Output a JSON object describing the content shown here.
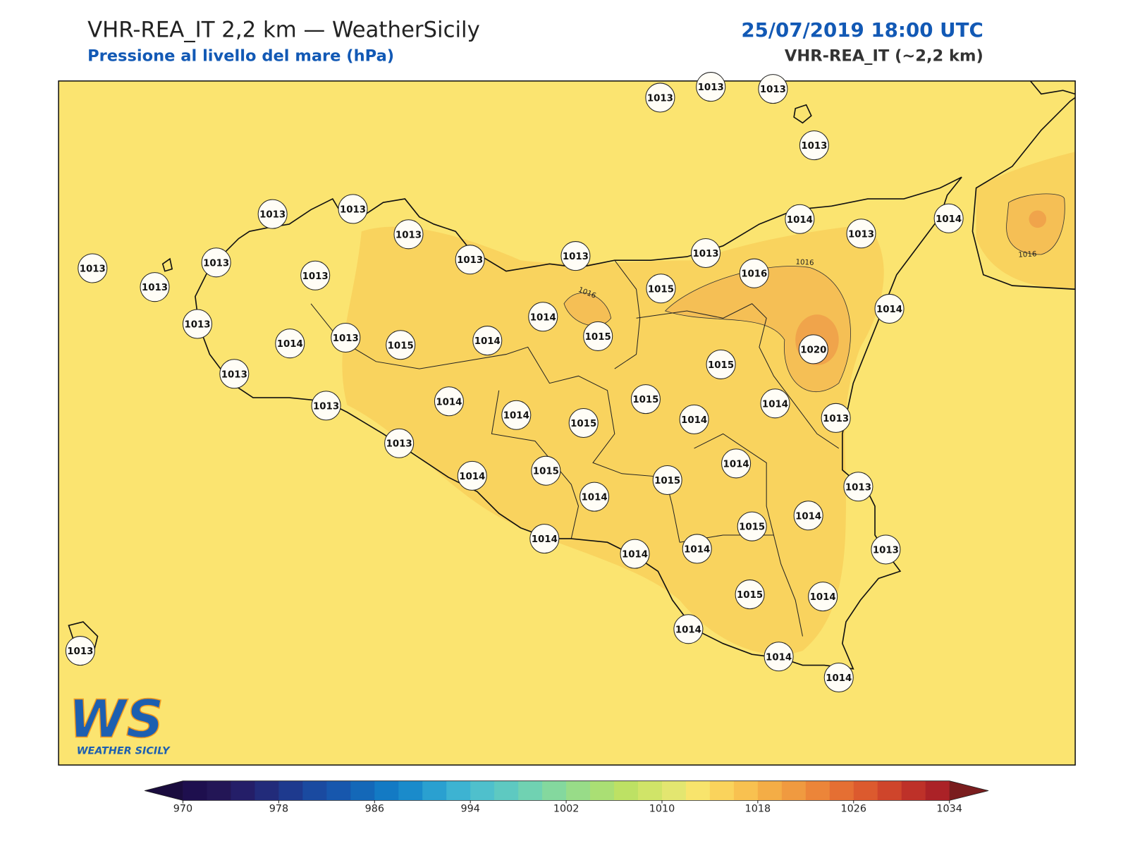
{
  "header": {
    "title": "VHR-REA_IT 2,2 km — WeatherSicily",
    "subtitle": "Pressione al livello del mare (hPa)",
    "datetime": "25/07/2019 18:00 UTC",
    "model": "VHR-REA_IT (~2,2 km)"
  },
  "map": {
    "stations": [
      1013,
      1013,
      1013,
      1013,
      1013,
      1013,
      1013,
      1013,
      1013,
      1013,
      1014,
      1013,
      1014,
      1013,
      1013,
      1013,
      1013,
      1015,
      1016,
      1014,
      1014,
      1013,
      1014,
      1013,
      1015,
      1014,
      1015,
      1020,
      1015,
      1013,
      1014,
      1015,
      1014,
      1015,
      1014,
      1014,
      1013,
      1013,
      1013,
      1014,
      1014,
      1015,
      1015,
      1013,
      1014,
      1014,
      1015,
      1014,
      1014,
      1014,
      1013,
      1015,
      1014,
      1014,
      1014,
      1014,
      1013
    ],
    "contour_labels": [
      "1016",
      "1016",
      "1016"
    ],
    "logo": {
      "mark": "WS",
      "text": "WEATHER SICILY"
    }
  },
  "colorbar": {
    "vlim": [
      970,
      1034
    ],
    "ticks": [
      970,
      978,
      986,
      994,
      1002,
      1010,
      1018,
      1026,
      1034
    ],
    "colors": [
      "#1e0f4e",
      "#231656",
      "#241e68",
      "#222b7a",
      "#1e3a8e",
      "#1a4aa0",
      "#1757ad",
      "#1468b8",
      "#137ac4",
      "#1a8bcb",
      "#2aa0d0",
      "#3db3d2",
      "#4fc0cc",
      "#5ec9c1",
      "#70d2b2",
      "#84d89e",
      "#98dc88",
      "#aadf74",
      "#bde164",
      "#d0e468",
      "#e3e670",
      "#f8e46c",
      "#fad35c",
      "#f8c150",
      "#f4ad46",
      "#f09a40",
      "#ec8539",
      "#e56f33",
      "#dc5a2e",
      "#cf452b",
      "#be3129",
      "#ab2227"
    ],
    "extend_colors": [
      "#1a0c3e",
      "#7a1d1e"
    ]
  }
}
